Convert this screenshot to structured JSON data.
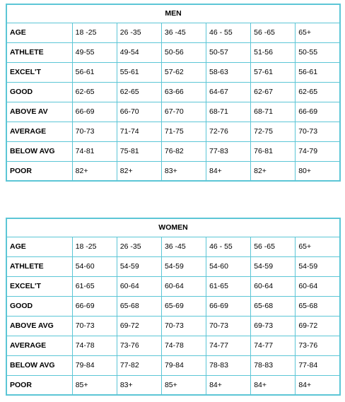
{
  "men": {
    "title": "MEN",
    "rows": [
      {
        "label": "AGE",
        "values": [
          "18 -25",
          "26 -35",
          "36 -45",
          "46 - 55",
          "56 -65",
          "65+"
        ]
      },
      {
        "label": "ATHLETE",
        "values": [
          "49-55",
          "49-54",
          "50-56",
          "50-57",
          "51-56",
          "50-55"
        ]
      },
      {
        "label": "EXCEL'T",
        "values": [
          "56-61",
          "55-61",
          "57-62",
          "58-63",
          "57-61",
          "56-61"
        ]
      },
      {
        "label": "GOOD",
        "values": [
          "62-65",
          "62-65",
          "63-66",
          "64-67",
          "62-67",
          "62-65"
        ]
      },
      {
        "label": "ABOVE AV",
        "values": [
          "66-69",
          "66-70",
          "67-70",
          "68-71",
          "68-71",
          "66-69"
        ]
      },
      {
        "label": "AVERAGE",
        "values": [
          "70-73",
          "71-74",
          "71-75",
          "72-76",
          "72-75",
          "70-73"
        ]
      },
      {
        "label": "BELOW AVG",
        "values": [
          "74-81",
          "75-81",
          "76-82",
          "77-83",
          "76-81",
          "74-79"
        ]
      },
      {
        "label": "POOR",
        "values": [
          "82+",
          "82+",
          "83+",
          "84+",
          "82+",
          "80+"
        ]
      }
    ]
  },
  "women": {
    "title": "WOMEN",
    "rows": [
      {
        "label": "AGE",
        "values": [
          "18 -25",
          "26 -35",
          "36 -45",
          "46 - 55",
          "56 -65",
          "65+"
        ]
      },
      {
        "label": "ATHLETE",
        "values": [
          "54-60",
          "54-59",
          "54-59",
          "54-60",
          "54-59",
          "54-59"
        ]
      },
      {
        "label": "EXCEL'T",
        "values": [
          "61-65",
          "60-64",
          "60-64",
          "61-65",
          "60-64",
          "60-64"
        ]
      },
      {
        "label": "GOOD",
        "values": [
          "66-69",
          "65-68",
          "65-69",
          "66-69",
          "65-68",
          "65-68"
        ]
      },
      {
        "label": "ABOVE AVG",
        "values": [
          "70-73",
          "69-72",
          "70-73",
          "70-73",
          "69-73",
          "69-72"
        ]
      },
      {
        "label": "AVERAGE",
        "values": [
          "74-78",
          "73-76",
          "74-78",
          "74-77",
          "74-77",
          "73-76"
        ]
      },
      {
        "label": "BELOW AVG",
        "values": [
          "79-84",
          "77-82",
          "79-84",
          "78-83",
          "78-83",
          "77-84"
        ]
      },
      {
        "label": "POOR",
        "values": [
          "85+",
          "83+",
          "85+",
          "84+",
          "84+",
          "84+"
        ]
      }
    ]
  }
}
